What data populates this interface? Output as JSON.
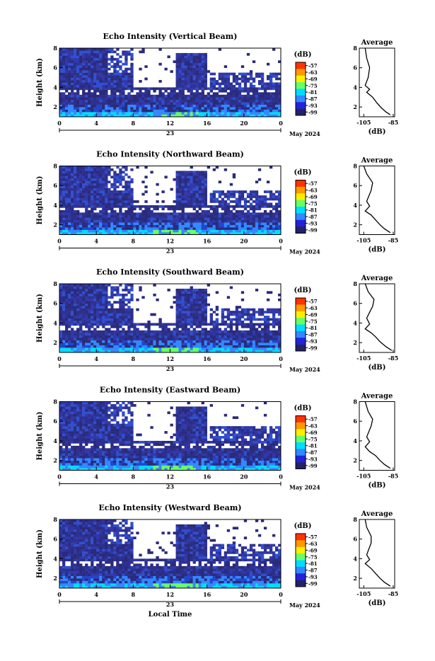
{
  "chart_data": [
    {
      "type": "heatmap",
      "title": "Echo Intensity (Vertical Beam)",
      "ylabel": "Height (km)",
      "x_ticks": [
        "0",
        "4",
        "8",
        "12",
        "16",
        "20",
        "0"
      ],
      "y_ticks": [
        "2",
        "4",
        "6",
        "8"
      ],
      "xlim": [
        0,
        24
      ],
      "ylim": [
        1,
        8
      ],
      "date_label": "23",
      "month_label": "May 2024",
      "colorbar": {
        "unit": "(dB)",
        "labels": [
          "-57",
          "-63",
          "-69",
          "-75",
          "-81",
          "-87",
          "-93",
          "-99"
        ],
        "colors": [
          "#ff3300",
          "#ff9900",
          "#ffee00",
          "#66ff66",
          "#00ddff",
          "#3388ff",
          "#2222dd",
          "#222266"
        ]
      },
      "average": {
        "title": "Average",
        "xlabel": "(dB)",
        "x_ticks": [
          "-105",
          "-85"
        ],
        "y_ticks": [
          "2",
          "4",
          "6",
          "8"
        ],
        "profile": [
          [
            -87,
            1.2
          ],
          [
            -90,
            1.5
          ],
          [
            -93,
            1.9
          ],
          [
            -96,
            2.4
          ],
          [
            -99,
            3.0
          ],
          [
            -103,
            3.5
          ],
          [
            -101,
            3.8
          ],
          [
            -104,
            4.2
          ],
          [
            -102,
            5.0
          ],
          [
            -101,
            6.0
          ],
          [
            -103,
            7.0
          ],
          [
            -104,
            8.0
          ]
        ]
      }
    },
    {
      "type": "heatmap",
      "title": "Echo Intensity (Northward Beam)",
      "ylabel": "Height (km)",
      "x_ticks": [
        "0",
        "4",
        "8",
        "12",
        "16",
        "20",
        "0"
      ],
      "y_ticks": [
        "2",
        "4",
        "6",
        "8"
      ],
      "xlim": [
        0,
        24
      ],
      "ylim": [
        1,
        8
      ],
      "date_label": "23",
      "month_label": "May 2024",
      "colorbar": {
        "unit": "(dB)",
        "labels": [
          "-57",
          "-63",
          "-69",
          "-75",
          "-81",
          "-87",
          "-93",
          "-99"
        ],
        "colors": [
          "#ff3300",
          "#ff9900",
          "#ffee00",
          "#66ff66",
          "#00ddff",
          "#3388ff",
          "#2222dd",
          "#222266"
        ]
      },
      "average": {
        "title": "Average",
        "xlabel": "(dB)",
        "x_ticks": [
          "-105",
          "-85"
        ],
        "y_ticks": [
          "2",
          "4",
          "6",
          "8"
        ],
        "profile": [
          [
            -87,
            1.2
          ],
          [
            -91,
            1.6
          ],
          [
            -94,
            2.0
          ],
          [
            -97,
            2.5
          ],
          [
            -100,
            3.0
          ],
          [
            -104,
            3.4
          ],
          [
            -101,
            3.9
          ],
          [
            -103,
            4.4
          ],
          [
            -100,
            5.5
          ],
          [
            -99,
            6.3
          ],
          [
            -103,
            7.2
          ],
          [
            -105,
            8.0
          ]
        ]
      }
    },
    {
      "type": "heatmap",
      "title": "Echo Intensity (Southward Beam)",
      "ylabel": "Height (km)",
      "x_ticks": [
        "0",
        "4",
        "8",
        "12",
        "16",
        "20",
        "0"
      ],
      "y_ticks": [
        "2",
        "4",
        "6",
        "8"
      ],
      "xlim": [
        0,
        24
      ],
      "ylim": [
        1,
        8
      ],
      "date_label": "23",
      "month_label": "May 2024",
      "colorbar": {
        "unit": "(dB)",
        "labels": [
          "-57",
          "-63",
          "-69",
          "-75",
          "-81",
          "-87",
          "-93",
          "-99"
        ],
        "colors": [
          "#ff3300",
          "#ff9900",
          "#ffee00",
          "#66ff66",
          "#00ddff",
          "#3388ff",
          "#2222dd",
          "#222266"
        ]
      },
      "average": {
        "title": "Average",
        "xlabel": "(dB)",
        "x_ticks": [
          "-105",
          "-85"
        ],
        "y_ticks": [
          "2",
          "4",
          "6",
          "8"
        ],
        "profile": [
          [
            -86,
            1.2
          ],
          [
            -90,
            1.6
          ],
          [
            -94,
            2.1
          ],
          [
            -97,
            2.6
          ],
          [
            -100,
            3.0
          ],
          [
            -104,
            3.4
          ],
          [
            -101,
            3.9
          ],
          [
            -103,
            4.5
          ],
          [
            -99,
            5.7
          ],
          [
            -98,
            6.4
          ],
          [
            -102,
            7.2
          ],
          [
            -104,
            8.0
          ]
        ]
      }
    },
    {
      "type": "heatmap",
      "title": "Echo Intensity (Eastward Beam)",
      "ylabel": "Height (km)",
      "x_ticks": [
        "0",
        "4",
        "8",
        "12",
        "16",
        "20",
        "0"
      ],
      "y_ticks": [
        "2",
        "4",
        "6",
        "8"
      ],
      "xlim": [
        0,
        24
      ],
      "ylim": [
        1,
        8
      ],
      "date_label": "23",
      "month_label": "May 2024",
      "colorbar": {
        "unit": "(dB)",
        "labels": [
          "-57",
          "-63",
          "-69",
          "-75",
          "-81",
          "-87",
          "-93",
          "-99"
        ],
        "colors": [
          "#ff3300",
          "#ff9900",
          "#ffee00",
          "#66ff66",
          "#00ddff",
          "#3388ff",
          "#2222dd",
          "#222266"
        ]
      },
      "average": {
        "title": "Average",
        "xlabel": "(dB)",
        "x_ticks": [
          "-105",
          "-85"
        ],
        "y_ticks": [
          "2",
          "4",
          "6",
          "8"
        ],
        "profile": [
          [
            -87,
            1.2
          ],
          [
            -91,
            1.6
          ],
          [
            -94,
            2.0
          ],
          [
            -97,
            2.5
          ],
          [
            -101,
            2.9
          ],
          [
            -104,
            3.4
          ],
          [
            -101,
            3.9
          ],
          [
            -103,
            4.4
          ],
          [
            -100,
            5.5
          ],
          [
            -99,
            6.2
          ],
          [
            -102,
            7.0
          ],
          [
            -104,
            8.0
          ]
        ]
      }
    },
    {
      "type": "heatmap",
      "title": "Echo Intensity (Westward Beam)",
      "ylabel": "Height (km)",
      "xlabel": "Local Time",
      "x_ticks": [
        "0",
        "4",
        "8",
        "12",
        "16",
        "20",
        "0"
      ],
      "y_ticks": [
        "2",
        "4",
        "6",
        "8"
      ],
      "xlim": [
        0,
        24
      ],
      "ylim": [
        1,
        8
      ],
      "date_label": "23",
      "month_label": "May 2024",
      "colorbar": {
        "unit": "(dB)",
        "labels": [
          "-57",
          "-63",
          "-69",
          "-75",
          "-81",
          "-87",
          "-93",
          "-99"
        ],
        "colors": [
          "#ff3300",
          "#ff9900",
          "#ffee00",
          "#66ff66",
          "#00ddff",
          "#3388ff",
          "#2222dd",
          "#222266"
        ]
      },
      "average": {
        "title": "Average",
        "xlabel": "(dB)",
        "x_ticks": [
          "-105",
          "-85"
        ],
        "y_ticks": [
          "2",
          "4",
          "6",
          "8"
        ],
        "profile": [
          [
            -87,
            1.2
          ],
          [
            -91,
            1.6
          ],
          [
            -94,
            2.0
          ],
          [
            -97,
            2.5
          ],
          [
            -100,
            3.0
          ],
          [
            -104,
            3.5
          ],
          [
            -101,
            3.9
          ],
          [
            -103,
            4.4
          ],
          [
            -100,
            5.6
          ],
          [
            -100,
            6.3
          ],
          [
            -103,
            7.2
          ],
          [
            -104,
            8.0
          ]
        ]
      }
    }
  ]
}
